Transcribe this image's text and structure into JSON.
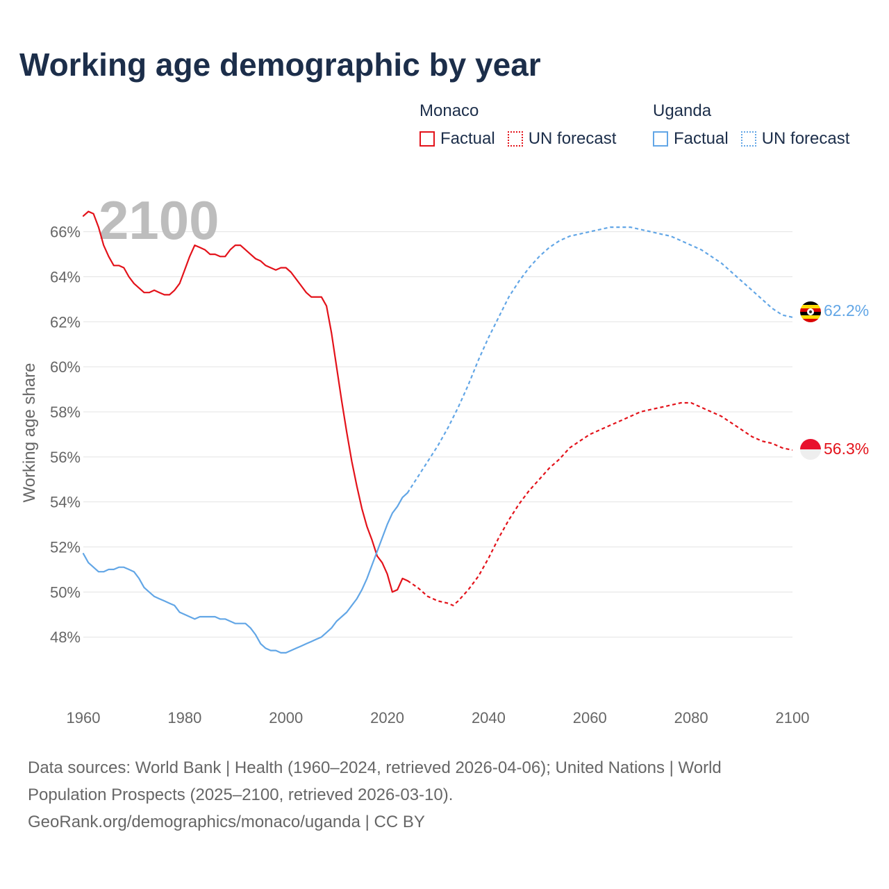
{
  "chart_data": {
    "type": "line",
    "title": "Working age demographic by year",
    "ylabel": "Working age share",
    "xlabel": "",
    "year_watermark": "2100",
    "xlim": [
      1960,
      2100
    ],
    "ylim": [
      45.6,
      67.5
    ],
    "x_ticks": [
      1960,
      1980,
      2000,
      2020,
      2040,
      2060,
      2080,
      2100
    ],
    "x_tick_labels": [
      "1960",
      "1980",
      "2000",
      "2020",
      "2040",
      "2060",
      "2080",
      "2100"
    ],
    "y_ticks": [
      48,
      50,
      52,
      54,
      56,
      58,
      60,
      62,
      64,
      66
    ],
    "y_tick_labels": [
      "48%",
      "50%",
      "52%",
      "54%",
      "56%",
      "58%",
      "60%",
      "62%",
      "64%",
      "66%"
    ],
    "grid": true,
    "legend": {
      "placement": "top-right",
      "groups": [
        {
          "name": "Monaco",
          "items": [
            {
              "label": "Factual",
              "style": "solid"
            },
            {
              "label": "UN forecast",
              "style": "dotted"
            }
          ]
        },
        {
          "name": "Uganda",
          "items": [
            {
              "label": "Factual",
              "style": "solid"
            },
            {
              "label": "UN forecast",
              "style": "dotted"
            }
          ]
        }
      ]
    },
    "series": [
      {
        "name": "Monaco",
        "color": "#e3121a",
        "end_label": "56.3%",
        "factual": {
          "x": [
            1960,
            1961,
            1962,
            1963,
            1964,
            1965,
            1966,
            1967,
            1968,
            1969,
            1970,
            1971,
            1972,
            1973,
            1974,
            1975,
            1976,
            1977,
            1978,
            1979,
            1980,
            1981,
            1982,
            1983,
            1984,
            1985,
            1986,
            1987,
            1988,
            1989,
            1990,
            1991,
            1992,
            1993,
            1994,
            1995,
            1996,
            1997,
            1998,
            1999,
            2000,
            2001,
            2002,
            2003,
            2004,
            2005,
            2006,
            2007,
            2008,
            2009,
            2010,
            2011,
            2012,
            2013,
            2014,
            2015,
            2016,
            2017,
            2018,
            2019,
            2020,
            2021,
            2022,
            2023,
            2024
          ],
          "y": [
            66.7,
            66.9,
            66.8,
            66.2,
            65.4,
            64.9,
            64.5,
            64.5,
            64.4,
            64.0,
            63.7,
            63.5,
            63.3,
            63.3,
            63.4,
            63.3,
            63.2,
            63.2,
            63.4,
            63.7,
            64.3,
            64.9,
            65.4,
            65.3,
            65.2,
            65.0,
            65.0,
            64.9,
            64.9,
            65.2,
            65.4,
            65.4,
            65.2,
            65.0,
            64.8,
            64.7,
            64.5,
            64.4,
            64.3,
            64.4,
            64.4,
            64.2,
            63.9,
            63.6,
            63.3,
            63.1,
            63.1,
            63.1,
            62.7,
            61.5,
            60.0,
            58.5,
            57.1,
            55.8,
            54.7,
            53.7,
            52.9,
            52.3,
            51.6,
            51.3,
            50.8,
            50.0,
            50.1,
            50.6,
            50.5
          ]
        },
        "forecast": {
          "x": [
            2024,
            2026,
            2028,
            2030,
            2032,
            2033,
            2034,
            2036,
            2038,
            2040,
            2042,
            2044,
            2046,
            2048,
            2050,
            2052,
            2054,
            2056,
            2058,
            2060,
            2062,
            2064,
            2066,
            2068,
            2070,
            2072,
            2074,
            2076,
            2078,
            2080,
            2082,
            2084,
            2086,
            2088,
            2090,
            2092,
            2094,
            2096,
            2098,
            2100
          ],
          "y": [
            50.5,
            50.2,
            49.8,
            49.6,
            49.5,
            49.4,
            49.6,
            50.1,
            50.7,
            51.5,
            52.4,
            53.2,
            53.9,
            54.5,
            55.0,
            55.5,
            55.9,
            56.4,
            56.7,
            57.0,
            57.2,
            57.4,
            57.6,
            57.8,
            58.0,
            58.1,
            58.2,
            58.3,
            58.4,
            58.4,
            58.2,
            58.0,
            57.8,
            57.5,
            57.2,
            56.9,
            56.7,
            56.6,
            56.4,
            56.3
          ]
        }
      },
      {
        "name": "Uganda",
        "color": "#62a6e6",
        "end_label": "62.2%",
        "factual": {
          "x": [
            1960,
            1961,
            1962,
            1963,
            1964,
            1965,
            1966,
            1967,
            1968,
            1969,
            1970,
            1971,
            1972,
            1973,
            1974,
            1975,
            1976,
            1977,
            1978,
            1979,
            1980,
            1981,
            1982,
            1983,
            1984,
            1985,
            1986,
            1987,
            1988,
            1989,
            1990,
            1991,
            1992,
            1993,
            1994,
            1995,
            1996,
            1997,
            1998,
            1999,
            2000,
            2001,
            2002,
            2003,
            2004,
            2005,
            2006,
            2007,
            2008,
            2009,
            2010,
            2011,
            2012,
            2013,
            2014,
            2015,
            2016,
            2017,
            2018,
            2019,
            2020,
            2021,
            2022,
            2023,
            2024
          ],
          "y": [
            51.7,
            51.3,
            51.1,
            50.9,
            50.9,
            51.0,
            51.0,
            51.1,
            51.1,
            51.0,
            50.9,
            50.6,
            50.2,
            50.0,
            49.8,
            49.7,
            49.6,
            49.5,
            49.4,
            49.1,
            49.0,
            48.9,
            48.8,
            48.9,
            48.9,
            48.9,
            48.9,
            48.8,
            48.8,
            48.7,
            48.6,
            48.6,
            48.6,
            48.4,
            48.1,
            47.7,
            47.5,
            47.4,
            47.4,
            47.3,
            47.3,
            47.4,
            47.5,
            47.6,
            47.7,
            47.8,
            47.9,
            48.0,
            48.2,
            48.4,
            48.7,
            48.9,
            49.1,
            49.4,
            49.7,
            50.1,
            50.6,
            51.2,
            51.8,
            52.4,
            53.0,
            53.5,
            53.8,
            54.2,
            54.4
          ]
        },
        "forecast": {
          "x": [
            2024,
            2026,
            2028,
            2030,
            2032,
            2034,
            2036,
            2038,
            2040,
            2042,
            2044,
            2046,
            2048,
            2050,
            2052,
            2054,
            2056,
            2058,
            2060,
            2062,
            2064,
            2066,
            2068,
            2070,
            2072,
            2074,
            2076,
            2078,
            2080,
            2082,
            2084,
            2086,
            2088,
            2090,
            2092,
            2094,
            2096,
            2098,
            2100
          ],
          "y": [
            54.4,
            55.1,
            55.8,
            56.5,
            57.3,
            58.2,
            59.2,
            60.3,
            61.3,
            62.2,
            63.1,
            63.8,
            64.4,
            64.9,
            65.3,
            65.6,
            65.8,
            65.9,
            66.0,
            66.1,
            66.2,
            66.2,
            66.2,
            66.1,
            66.0,
            65.9,
            65.8,
            65.6,
            65.4,
            65.2,
            64.9,
            64.6,
            64.2,
            63.8,
            63.4,
            63.0,
            62.6,
            62.3,
            62.2
          ]
        }
      }
    ],
    "source_lines": [
      "Data sources: World Bank | Health (1960–2024, retrieved 2026-04-06); United Nations | World",
      "Population Prospects (2025–2100, retrieved 2026-03-10).",
      "GeoRank.org/demographics/monaco/uganda | CC BY"
    ]
  }
}
